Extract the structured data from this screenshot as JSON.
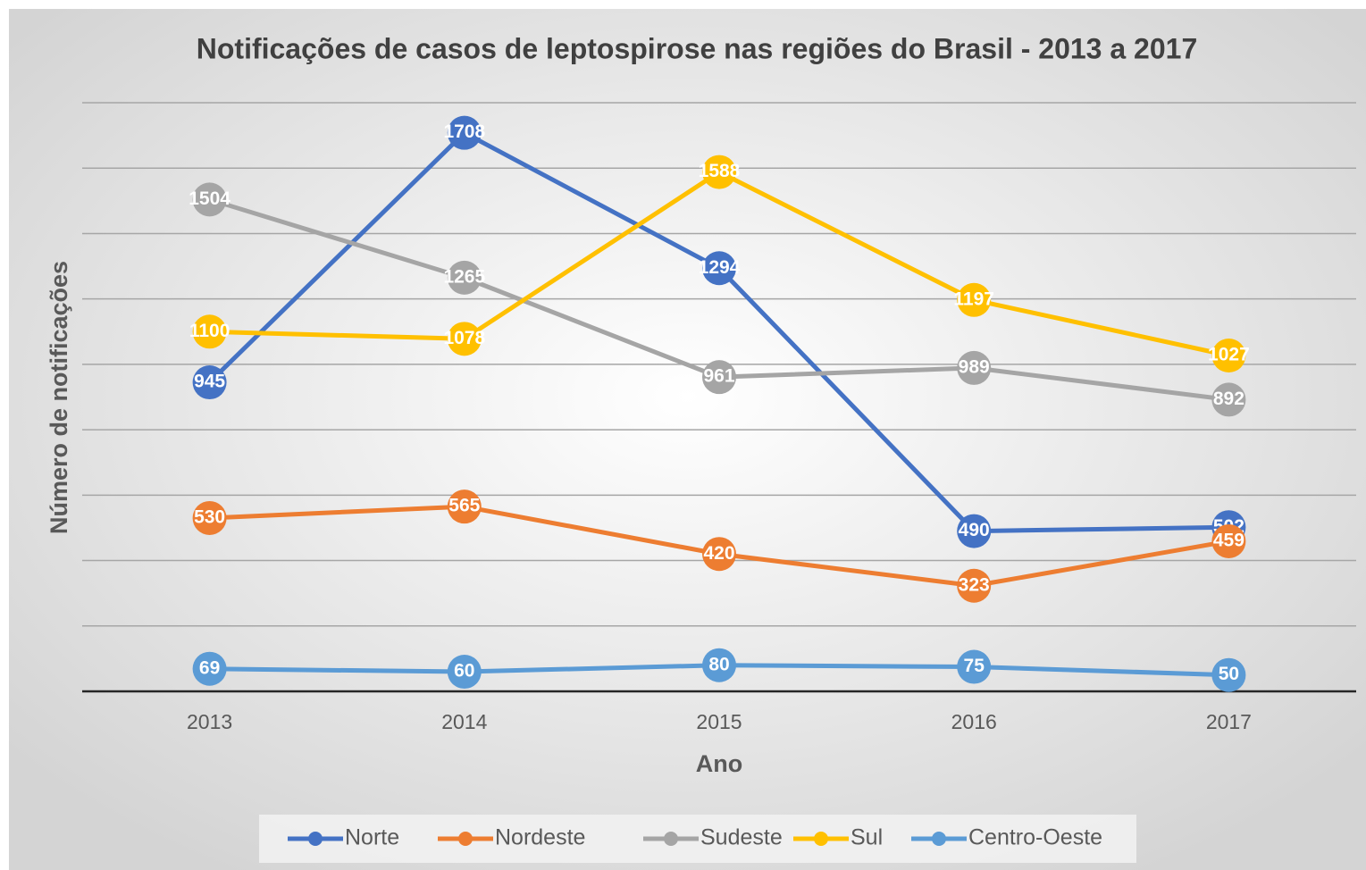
{
  "chart_data": {
    "type": "line",
    "title": "Notificações de casos de leptospirose nas regiões do Brasil - 2013 a 2017",
    "x_label": "Ano",
    "y_label": "Número de notificações",
    "categories": [
      "2013",
      "2014",
      "2015",
      "2016",
      "2017"
    ],
    "series": [
      {
        "name": "Norte",
        "color": "#4472c4",
        "values": [
          945,
          1708,
          1294,
          490,
          502
        ]
      },
      {
        "name": "Nordeste",
        "color": "#ed7d31",
        "values": [
          530,
          565,
          420,
          323,
          459
        ]
      },
      {
        "name": "Sudeste",
        "color": "#a5a5a5",
        "values": [
          1504,
          1265,
          961,
          989,
          892
        ]
      },
      {
        "name": "Sul",
        "color": "#ffc000",
        "values": [
          1100,
          1078,
          1588,
          1197,
          1027
        ]
      },
      {
        "name": "Centro-Oeste",
        "color": "#5b9bd5",
        "values": [
          69,
          60,
          80,
          75,
          50
        ]
      }
    ],
    "ylim": [
      0,
      1800
    ],
    "yticks": [
      0,
      200,
      400,
      600,
      800,
      1000,
      1200,
      1400,
      1600,
      1800
    ],
    "grid": true,
    "legend": "bottom"
  }
}
